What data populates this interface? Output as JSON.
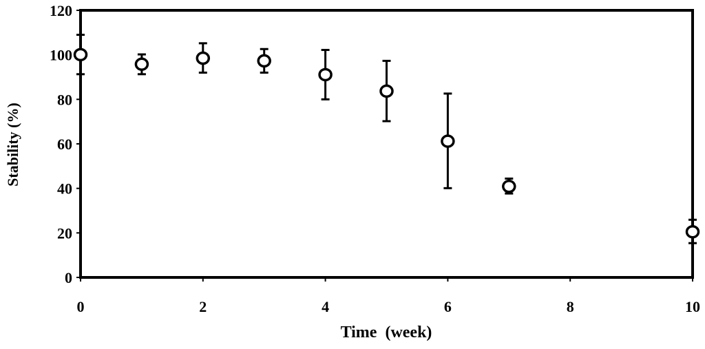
{
  "chart_data": {
    "type": "scatter",
    "title": "",
    "xlabel": "Time  (week)",
    "ylabel": "Stability (%)",
    "xlim": [
      0,
      10
    ],
    "ylim": [
      0,
      120
    ],
    "xticks": [
      0,
      2,
      4,
      6,
      8,
      10
    ],
    "yticks": [
      0,
      20,
      40,
      60,
      80,
      100,
      120
    ],
    "grid": false,
    "legend": "none",
    "marker": "open-circle",
    "color": "#000000",
    "points": [
      {
        "x": 0,
        "y": 100.1,
        "err_low": 91.3,
        "err_high": 109.0
      },
      {
        "x": 1,
        "y": 95.8,
        "err_low": 91.3,
        "err_high": 100.2
      },
      {
        "x": 2,
        "y": 98.5,
        "err_low": 92.0,
        "err_high": 105.2
      },
      {
        "x": 3,
        "y": 97.3,
        "err_low": 92.0,
        "err_high": 102.6
      },
      {
        "x": 4,
        "y": 91.1,
        "err_low": 80.0,
        "err_high": 102.2
      },
      {
        "x": 5,
        "y": 83.7,
        "err_low": 70.2,
        "err_high": 97.3
      },
      {
        "x": 6,
        "y": 61.2,
        "err_low": 40.1,
        "err_high": 82.6
      },
      {
        "x": 7,
        "y": 40.9,
        "err_low": 37.7,
        "err_high": 44.4
      },
      {
        "x": 10,
        "y": 20.5,
        "err_low": 15.4,
        "err_high": 25.9
      }
    ]
  }
}
